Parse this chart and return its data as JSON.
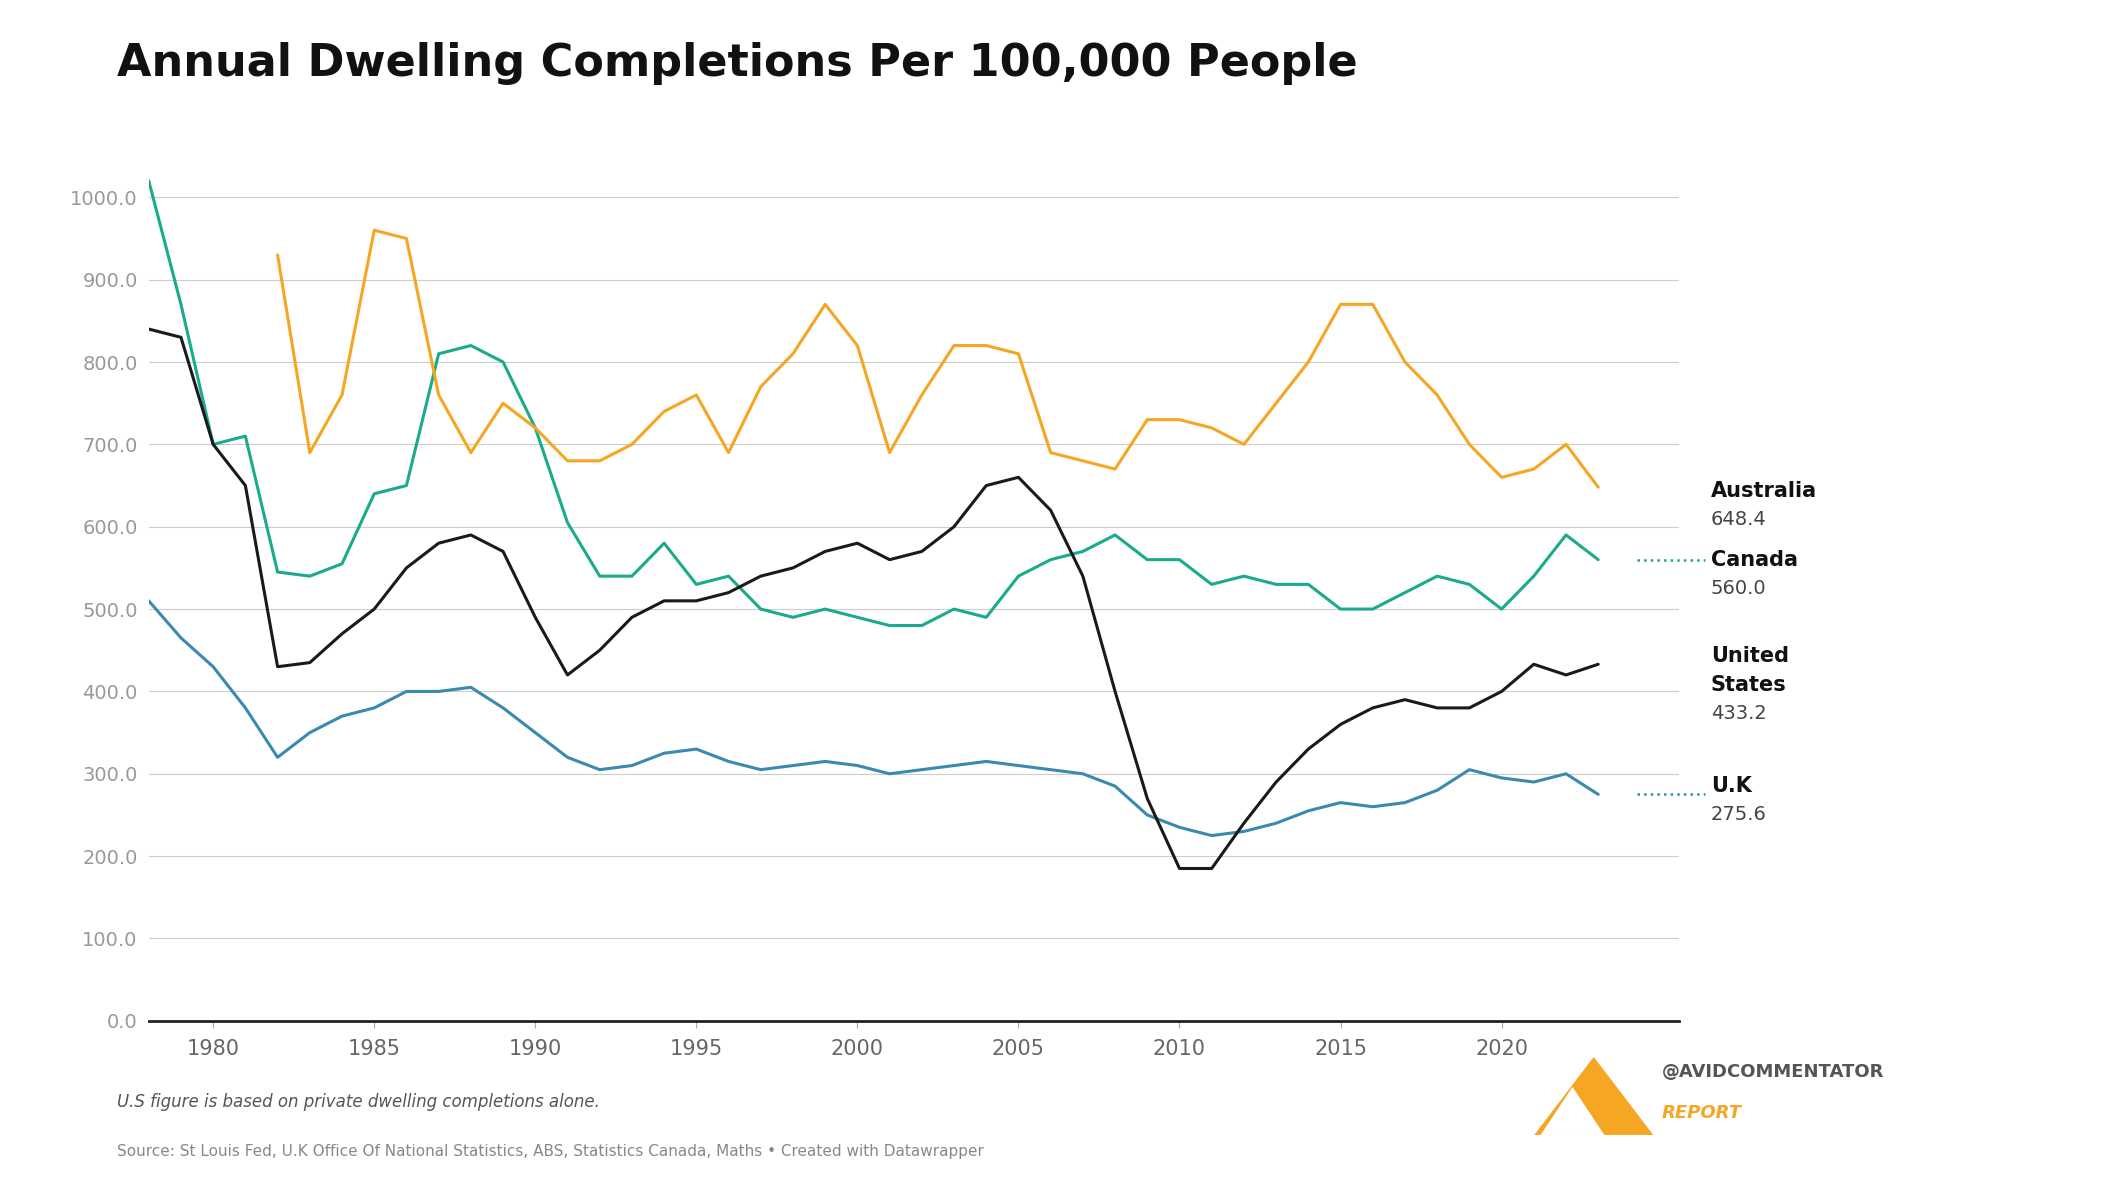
{
  "title": "Annual Dwelling Completions Per 100,000 People",
  "background_color": "#ffffff",
  "line_color_australia": "#f5a623",
  "line_color_canada": "#1aaa8c",
  "line_color_us": "#1a1a1a",
  "line_color_uk": "#3a8ab0",
  "ylim": [
    0,
    1050
  ],
  "yticks": [
    0.0,
    100.0,
    200.0,
    300.0,
    400.0,
    500.0,
    600.0,
    700.0,
    800.0,
    900.0,
    1000.0
  ],
  "xticks": [
    1980,
    1985,
    1990,
    1995,
    2000,
    2005,
    2010,
    2015,
    2020
  ],
  "footnote": "U.S figure is based on private dwelling completions alone.",
  "source": "Source: St Louis Fed, U.K Office Of National Statistics, ABS, Statistics Canada, Maths • Created with Datawrapper",
  "australia": {
    "years": [
      1982,
      1983,
      1984,
      1985,
      1986,
      1987,
      1988,
      1989,
      1990,
      1991,
      1992,
      1993,
      1994,
      1995,
      1996,
      1997,
      1998,
      1999,
      2000,
      2001,
      2002,
      2003,
      2004,
      2005,
      2006,
      2007,
      2008,
      2009,
      2010,
      2011,
      2012,
      2013,
      2014,
      2015,
      2016,
      2017,
      2018,
      2019,
      2020,
      2021,
      2022,
      2023
    ],
    "values": [
      930,
      690,
      760,
      960,
      950,
      760,
      690,
      750,
      720,
      680,
      680,
      700,
      740,
      760,
      690,
      770,
      810,
      870,
      820,
      690,
      760,
      820,
      820,
      810,
      690,
      680,
      670,
      730,
      730,
      720,
      700,
      750,
      800,
      870,
      870,
      800,
      760,
      700,
      660,
      670,
      700,
      648
    ]
  },
  "canada": {
    "years": [
      1978,
      1979,
      1980,
      1981,
      1982,
      1983,
      1984,
      1985,
      1986,
      1987,
      1988,
      1989,
      1990,
      1991,
      1992,
      1993,
      1994,
      1995,
      1996,
      1997,
      1998,
      1999,
      2000,
      2001,
      2002,
      2003,
      2004,
      2005,
      2006,
      2007,
      2008,
      2009,
      2010,
      2011,
      2012,
      2013,
      2014,
      2015,
      2016,
      2017,
      2018,
      2019,
      2020,
      2021,
      2022,
      2023
    ],
    "values": [
      1020,
      870,
      700,
      710,
      545,
      540,
      555,
      640,
      650,
      810,
      820,
      800,
      720,
      605,
      540,
      540,
      580,
      530,
      540,
      500,
      490,
      500,
      490,
      480,
      480,
      500,
      490,
      540,
      560,
      570,
      590,
      560,
      560,
      530,
      540,
      530,
      530,
      500,
      500,
      520,
      540,
      530,
      500,
      540,
      590,
      560
    ]
  },
  "us": {
    "years": [
      1978,
      1979,
      1980,
      1981,
      1982,
      1983,
      1984,
      1985,
      1986,
      1987,
      1988,
      1989,
      1990,
      1991,
      1992,
      1993,
      1994,
      1995,
      1996,
      1997,
      1998,
      1999,
      2000,
      2001,
      2002,
      2003,
      2004,
      2005,
      2006,
      2007,
      2008,
      2009,
      2010,
      2011,
      2012,
      2013,
      2014,
      2015,
      2016,
      2017,
      2018,
      2019,
      2020,
      2021,
      2022,
      2023
    ],
    "values": [
      840,
      830,
      700,
      650,
      430,
      435,
      470,
      500,
      550,
      580,
      590,
      570,
      490,
      420,
      450,
      490,
      510,
      510,
      520,
      540,
      550,
      570,
      580,
      560,
      570,
      600,
      650,
      660,
      620,
      540,
      400,
      270,
      185,
      185,
      240,
      290,
      330,
      360,
      380,
      390,
      380,
      380,
      400,
      433,
      420,
      433
    ]
  },
  "uk": {
    "years": [
      1978,
      1979,
      1980,
      1981,
      1982,
      1983,
      1984,
      1985,
      1986,
      1987,
      1988,
      1989,
      1990,
      1991,
      1992,
      1993,
      1994,
      1995,
      1996,
      1997,
      1998,
      1999,
      2000,
      2001,
      2002,
      2003,
      2004,
      2005,
      2006,
      2007,
      2008,
      2009,
      2010,
      2011,
      2012,
      2013,
      2014,
      2015,
      2016,
      2017,
      2018,
      2019,
      2020,
      2021,
      2022,
      2023
    ],
    "values": [
      510,
      465,
      430,
      380,
      320,
      350,
      370,
      380,
      400,
      400,
      405,
      380,
      350,
      320,
      305,
      310,
      325,
      330,
      315,
      305,
      310,
      315,
      310,
      300,
      305,
      310,
      315,
      310,
      305,
      300,
      285,
      250,
      235,
      225,
      230,
      240,
      255,
      265,
      260,
      265,
      280,
      305,
      295,
      290,
      300,
      275
    ]
  },
  "label_australia": "Australia",
  "label_australia_val": "648.4",
  "label_canada": "Canada",
  "label_canada_val": "560.0",
  "label_us_line1": "United",
  "label_us_line2": "States",
  "label_us_val": "433.2",
  "label_uk": "U.K",
  "label_uk_val": "275.6"
}
